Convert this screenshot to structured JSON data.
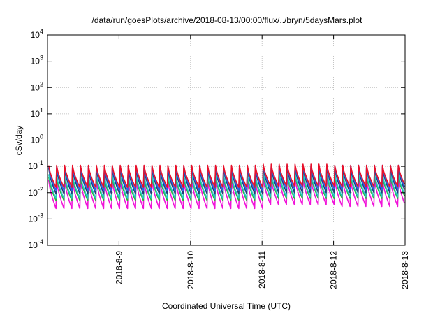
{
  "chart_data": {
    "type": "line",
    "title": "/data/run/goesPlots/archive/2018-08-13/00:00/flux/../bryn/5daysMars.plot",
    "xlabel": "Coordinated Universal Time (UTC)",
    "ylabel": "cSv/day",
    "yscale": "log",
    "ylim": [
      0.0001,
      10000
    ],
    "xlim": [
      "2018-08-08 00:00",
      "2018-08-13 00:00"
    ],
    "y_ticks": [
      {
        "base": "10",
        "exp": "-4",
        "value": 0.0001
      },
      {
        "base": "10",
        "exp": "-3",
        "value": 0.001
      },
      {
        "base": "10",
        "exp": "-2",
        "value": 0.01
      },
      {
        "base": "10",
        "exp": "-1",
        "value": 0.1
      },
      {
        "base": "10",
        "exp": "0",
        "value": 1
      },
      {
        "base": "10",
        "exp": "1",
        "value": 10
      },
      {
        "base": "10",
        "exp": "2",
        "value": 100
      },
      {
        "base": "10",
        "exp": "3",
        "value": 1000
      },
      {
        "base": "10",
        "exp": "4",
        "value": 10000
      }
    ],
    "x_ticks": [
      {
        "label": "2018-8-9",
        "day": 1
      },
      {
        "label": "2018-8-10",
        "day": 2
      },
      {
        "label": "2018-8-11",
        "day": 3
      },
      {
        "label": "2018-8-12",
        "day": 4
      },
      {
        "label": "2018-8-13",
        "day": 5
      }
    ],
    "grid": true,
    "legend": "none",
    "series": [
      {
        "color": "#e8102a",
        "peaks": [
          0.11,
          0.11,
          0.11,
          0.12,
          0.11
        ],
        "troughs": [
          0.016,
          0.016,
          0.016,
          0.018,
          0.017
        ]
      },
      {
        "color": "#2b5fe8",
        "peaks": [
          0.1,
          0.1,
          0.1,
          0.11,
          0.11
        ],
        "troughs": [
          0.012,
          0.012,
          0.012,
          0.014,
          0.013
        ]
      },
      {
        "color": "#243d7a",
        "peaks": [
          0.085,
          0.085,
          0.088,
          0.1,
          0.095
        ],
        "troughs": [
          0.009,
          0.009,
          0.009,
          0.01,
          0.01
        ]
      },
      {
        "color": "#20c9c0",
        "peaks": [
          0.05,
          0.05,
          0.05,
          0.06,
          0.055
        ],
        "troughs": [
          0.006,
          0.006,
          0.006,
          0.007,
          0.007
        ]
      },
      {
        "color": "#2fae3a",
        "peaks": [
          0.04,
          0.04,
          0.042,
          0.05,
          0.045
        ],
        "troughs": [
          0.005,
          0.005,
          0.005,
          0.006,
          0.006
        ]
      },
      {
        "color": "#f012d8",
        "peaks": [
          0.03,
          0.03,
          0.03,
          0.035,
          0.032
        ],
        "troughs": [
          0.0025,
          0.0025,
          0.0025,
          0.0035,
          0.003
        ]
      }
    ],
    "cycles_per_day": 9
  }
}
